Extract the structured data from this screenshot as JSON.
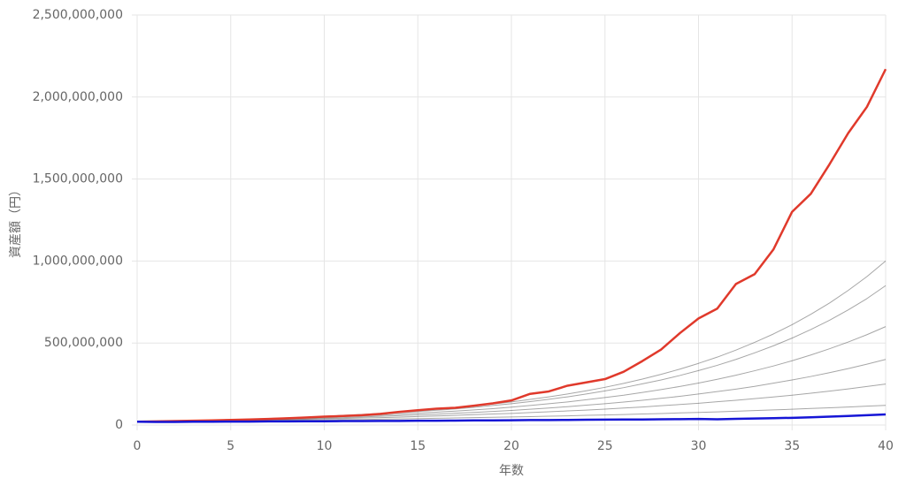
{
  "chart_data": {
    "type": "line",
    "xlabel": "年数",
    "ylabel": "資産額（円）",
    "x": [
      0,
      1,
      2,
      3,
      4,
      5,
      6,
      7,
      8,
      9,
      10,
      11,
      12,
      13,
      14,
      15,
      16,
      17,
      18,
      19,
      20,
      21,
      22,
      23,
      24,
      25,
      26,
      27,
      28,
      29,
      30,
      31,
      32,
      33,
      34,
      35,
      36,
      37,
      38,
      39,
      40
    ],
    "xlim": [
      0,
      40
    ],
    "xticks": [
      0,
      5,
      10,
      15,
      20,
      25,
      30,
      35,
      40
    ],
    "ylim": [
      0,
      2500000000
    ],
    "yticks": [
      0,
      {
        "value": 500000000,
        "label": "500,000,000"
      },
      {
        "value": 1000000000,
        "label": "1,000,000,000"
      },
      {
        "value": 1500000000,
        "label": "1,500,000,000"
      },
      {
        "value": 2000000000,
        "label": "2,000,000,000"
      },
      {
        "value": 2500000000,
        "label": "2,500,000,000"
      }
    ],
    "grid": true,
    "series": [
      {
        "color": "#000000",
        "values": [
          20000000,
          21000000,
          22000000,
          23000000,
          24000000,
          25000000,
          26000000,
          27000000,
          29000000,
          30000000,
          31000000,
          33000000,
          34000000,
          36000000,
          37000000,
          39000000,
          41000000,
          43000000,
          45000000,
          47000000,
          49000000,
          51000000,
          54000000,
          56000000,
          59000000,
          61000000,
          64000000,
          67000000,
          70000000,
          74000000,
          77000000,
          80000000,
          84000000,
          88000000,
          92000000,
          96000000,
          101000000,
          105000000,
          110000000,
          115000000,
          120000000
        ]
      },
      {
        "color": "#000000",
        "values": [
          20000000,
          21000000,
          23000000,
          24000000,
          26000000,
          27000000,
          29000000,
          31000000,
          33000000,
          35000000,
          38000000,
          40000000,
          43000000,
          45000000,
          48000000,
          52000000,
          55000000,
          59000000,
          63000000,
          67000000,
          71000000,
          76000000,
          81000000,
          86000000,
          91000000,
          97000000,
          104000000,
          110000000,
          118000000,
          125000000,
          133000000,
          142000000,
          151000000,
          161000000,
          171000000,
          182000000,
          194000000,
          207000000,
          220000000,
          235000000,
          250000000
        ]
      },
      {
        "color": "#000000",
        "values": [
          20000000,
          22000000,
          23000000,
          25000000,
          27000000,
          29000000,
          31000000,
          34000000,
          36000000,
          39000000,
          42000000,
          45000000,
          49000000,
          53000000,
          57000000,
          62000000,
          66000000,
          72000000,
          77000000,
          83000000,
          89000000,
          96000000,
          104000000,
          112000000,
          121000000,
          130000000,
          140000000,
          151000000,
          163000000,
          175000000,
          189000000,
          204000000,
          219000000,
          236000000,
          255000000,
          275000000,
          296000000,
          319000000,
          344000000,
          371000000,
          400000000
        ]
      },
      {
        "color": "#000000",
        "values": [
          20000000,
          22000000,
          24000000,
          26000000,
          28000000,
          31000000,
          33000000,
          36000000,
          40000000,
          43000000,
          47000000,
          51000000,
          55000000,
          60000000,
          66000000,
          72000000,
          78000000,
          85000000,
          92000000,
          100000000,
          109000000,
          119000000,
          130000000,
          141000000,
          154000000,
          168000000,
          182000000,
          199000000,
          216000000,
          235000000,
          256000000,
          279000000,
          304000000,
          331000000,
          360000000,
          392000000,
          427000000,
          465000000,
          506000000,
          551000000,
          600000000
        ]
      },
      {
        "color": "#000000",
        "values": [
          20000000,
          22000000,
          24000000,
          27000000,
          29000000,
          32000000,
          35000000,
          38000000,
          42000000,
          46000000,
          51000000,
          56000000,
          61000000,
          67000000,
          74000000,
          82000000,
          90000000,
          98000000,
          108000000,
          119000000,
          130000000,
          143000000,
          157000000,
          172000000,
          189000000,
          208000000,
          228000000,
          251000000,
          275000000,
          302000000,
          332000000,
          364000000,
          400000000,
          440000000,
          483000000,
          530000000,
          582000000,
          639000000,
          702000000,
          771000000,
          850000000
        ]
      },
      {
        "color": "#000000",
        "values": [
          20000000,
          22000000,
          24000000,
          27000000,
          30000000,
          33000000,
          36000000,
          40000000,
          44000000,
          48000000,
          53000000,
          59000000,
          65000000,
          71000000,
          79000000,
          87000000,
          96000000,
          105000000,
          116000000,
          128000000,
          141000000,
          156000000,
          172000000,
          189000000,
          209000000,
          230000000,
          254000000,
          280000000,
          309000000,
          341000000,
          376000000,
          414000000,
          457000000,
          504000000,
          555000000,
          612000000,
          675000000,
          744000000,
          821000000,
          905000000,
          1000000000
        ]
      },
      {
        "color": "#e0392b",
        "values": [
          20000000,
          22000000,
          24000000,
          26000000,
          28000000,
          31000000,
          34000000,
          37000000,
          41000000,
          46000000,
          51000000,
          55000000,
          60000000,
          68000000,
          80000000,
          90000000,
          100000000,
          105000000,
          118000000,
          132000000,
          150000000,
          190000000,
          205000000,
          240000000,
          260000000,
          280000000,
          325000000,
          390000000,
          460000000,
          560000000,
          650000000,
          710000000,
          860000000,
          920000000,
          1070000000,
          1300000000,
          1410000000,
          1590000000,
          1780000000,
          1940000000,
          2170000000
        ]
      },
      {
        "color": "#1515d6",
        "values": [
          20000000,
          19000000,
          19000000,
          20000000,
          20000000,
          21000000,
          21000000,
          22000000,
          22000000,
          23000000,
          23000000,
          24000000,
          24000000,
          25000000,
          25000000,
          26000000,
          26000000,
          27000000,
          28000000,
          28000000,
          29000000,
          30000000,
          30000000,
          31000000,
          32000000,
          33000000,
          34000000,
          34000000,
          35000000,
          36000000,
          37000000,
          35000000,
          38000000,
          40000000,
          42000000,
          44000000,
          47000000,
          51000000,
          55000000,
          60000000,
          65000000
        ]
      }
    ]
  }
}
